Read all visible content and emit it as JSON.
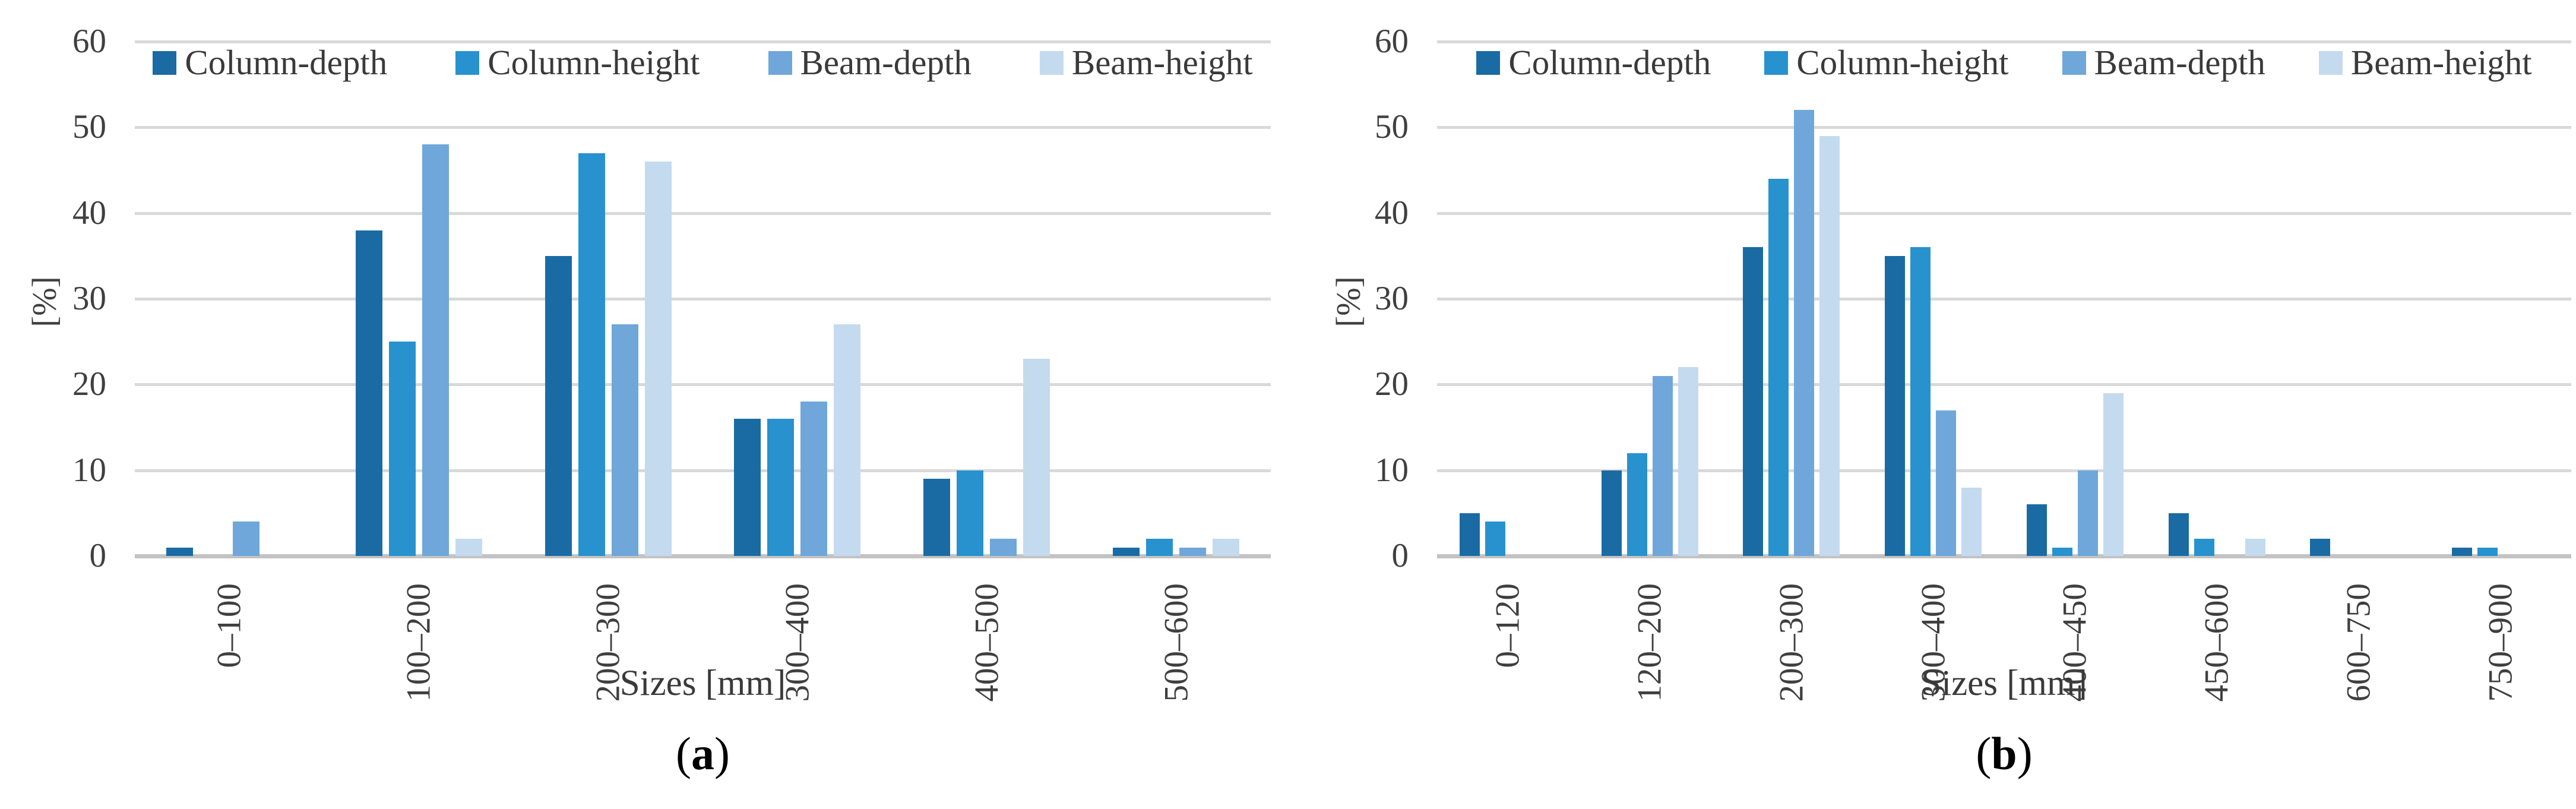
{
  "figure": {
    "background": "#ffffff",
    "text_color": "#3f3f3f",
    "gridline_color": "#d9d9d9",
    "axis_line_color": "#c3c3c3",
    "paren_open": "(",
    "paren_close": ")"
  },
  "chart_data": [
    {
      "type": "bar",
      "caption_letter": "a",
      "xlabel": "Sizes [mm]",
      "ylabel": "[%]",
      "ylim": [
        0,
        60
      ],
      "yticks": [
        0,
        10,
        20,
        30,
        40,
        50,
        60
      ],
      "grid": true,
      "legend_position": "top-center",
      "categories": [
        "0–100",
        "100–200",
        "200–300",
        "300–400",
        "400–500",
        "500–600"
      ],
      "series": [
        {
          "name": "Column-depth",
          "color": "#1A6BA4",
          "values": [
            1,
            38,
            35,
            16,
            9,
            1
          ]
        },
        {
          "name": "Column-height",
          "color": "#2892CE",
          "values": [
            0,
            25,
            47,
            16,
            10,
            2
          ]
        },
        {
          "name": "Beam-depth",
          "color": "#6FA7DA",
          "values": [
            4,
            48,
            27,
            18,
            2,
            1
          ]
        },
        {
          "name": "Beam-height",
          "color": "#C4DAEF",
          "values": [
            0,
            2,
            46,
            27,
            23,
            2
          ]
        }
      ]
    },
    {
      "type": "bar",
      "caption_letter": "b",
      "xlabel": "Sizes [mm]",
      "ylabel": "[%]",
      "ylim": [
        0,
        60
      ],
      "yticks": [
        0,
        10,
        20,
        30,
        40,
        50,
        60
      ],
      "grid": true,
      "legend_position": "top-center",
      "categories": [
        "0–120",
        "120–200",
        "200–300",
        "300–400",
        "400–450",
        "450–600",
        "600–750",
        "750–900"
      ],
      "series": [
        {
          "name": "Column-depth",
          "color": "#1A6BA4",
          "values": [
            5,
            10,
            36,
            35,
            6,
            5,
            2,
            1
          ]
        },
        {
          "name": "Column-height",
          "color": "#2892CE",
          "values": [
            4,
            12,
            44,
            36,
            1,
            2,
            0,
            1
          ]
        },
        {
          "name": "Beam-depth",
          "color": "#6FA7DA",
          "values": [
            0,
            21,
            52,
            17,
            10,
            0,
            0,
            0
          ]
        },
        {
          "name": "Beam-height",
          "color": "#C4DAEF",
          "values": [
            0,
            22,
            49,
            8,
            19,
            2,
            0,
            0
          ]
        }
      ]
    }
  ]
}
